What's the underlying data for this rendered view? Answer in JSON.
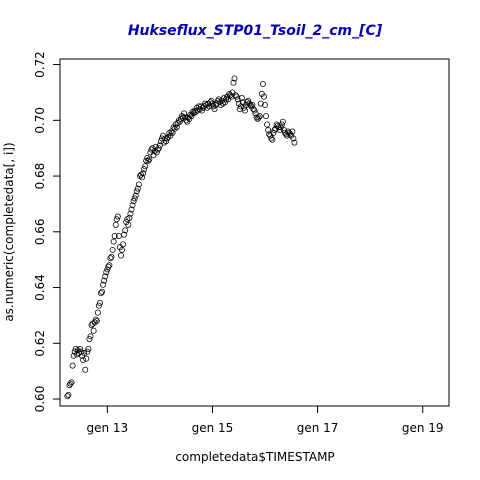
{
  "chart_data": {
    "type": "scatter",
    "title": "Hukseflux_STP01_Tsoil_2_cm_[C]",
    "title_color": "#0000cc",
    "xlabel": "completedata$TIMESTAMP",
    "ylabel": "as.numeric(completedata[, i])",
    "x_unit": "days (day 13 = gen 13)",
    "xlim": [
      12.1,
      19.5
    ],
    "ylim": [
      0.5975,
      0.722
    ],
    "x_ticks": [
      {
        "value": 13,
        "label": "gen 13"
      },
      {
        "value": 15,
        "label": "gen 15"
      },
      {
        "value": 17,
        "label": "gen 17"
      },
      {
        "value": 19,
        "label": "gen 19"
      }
    ],
    "y_ticks": [
      {
        "value": 0.6,
        "label": "0.60"
      },
      {
        "value": 0.62,
        "label": "0.62"
      },
      {
        "value": 0.64,
        "label": "0.64"
      },
      {
        "value": 0.66,
        "label": "0.66"
      },
      {
        "value": 0.68,
        "label": "0.68"
      },
      {
        "value": 0.7,
        "label": "0.70"
      },
      {
        "value": 0.72,
        "label": "0.72"
      }
    ],
    "point_style": "open-circle",
    "grid": false,
    "points": [
      [
        12.24,
        0.601
      ],
      [
        12.26,
        0.6015
      ],
      [
        12.28,
        0.605
      ],
      [
        12.3,
        0.6055
      ],
      [
        12.32,
        0.606
      ],
      [
        12.34,
        0.612
      ],
      [
        12.36,
        0.6155
      ],
      [
        12.38,
        0.617
      ],
      [
        12.4,
        0.618
      ],
      [
        12.42,
        0.616
      ],
      [
        12.44,
        0.6175
      ],
      [
        12.46,
        0.6165
      ],
      [
        12.48,
        0.618
      ],
      [
        12.5,
        0.617
      ],
      [
        12.52,
        0.6155
      ],
      [
        12.54,
        0.614
      ],
      [
        12.56,
        0.6165
      ],
      [
        12.58,
        0.6105
      ],
      [
        12.6,
        0.6145
      ],
      [
        12.62,
        0.617
      ],
      [
        12.64,
        0.618
      ],
      [
        12.66,
        0.6215
      ],
      [
        12.68,
        0.6225
      ],
      [
        12.7,
        0.6265
      ],
      [
        12.72,
        0.627
      ],
      [
        12.74,
        0.6245
      ],
      [
        12.76,
        0.6275
      ],
      [
        12.78,
        0.6285
      ],
      [
        12.8,
        0.628
      ],
      [
        12.82,
        0.631
      ],
      [
        12.84,
        0.6335
      ],
      [
        12.86,
        0.6345
      ],
      [
        12.88,
        0.638
      ],
      [
        12.9,
        0.6385
      ],
      [
        12.92,
        0.641
      ],
      [
        12.94,
        0.6425
      ],
      [
        12.96,
        0.644
      ],
      [
        12.98,
        0.6455
      ],
      [
        13.0,
        0.6465
      ],
      [
        13.02,
        0.6475
      ],
      [
        13.04,
        0.648
      ],
      [
        13.06,
        0.6505
      ],
      [
        13.08,
        0.651
      ],
      [
        13.1,
        0.6535
      ],
      [
        13.12,
        0.6565
      ],
      [
        13.14,
        0.6585
      ],
      [
        13.16,
        0.6625
      ],
      [
        13.18,
        0.6645
      ],
      [
        13.2,
        0.6655
      ],
      [
        13.22,
        0.6585
      ],
      [
        13.24,
        0.6545
      ],
      [
        13.26,
        0.6515
      ],
      [
        13.28,
        0.6535
      ],
      [
        13.3,
        0.6555
      ],
      [
        13.32,
        0.659
      ],
      [
        13.34,
        0.6605
      ],
      [
        13.36,
        0.6635
      ],
      [
        13.38,
        0.6645
      ],
      [
        13.4,
        0.6625
      ],
      [
        13.42,
        0.665
      ],
      [
        13.44,
        0.6665
      ],
      [
        13.46,
        0.668
      ],
      [
        13.48,
        0.6695
      ],
      [
        13.5,
        0.671
      ],
      [
        13.52,
        0.672
      ],
      [
        13.54,
        0.673
      ],
      [
        13.56,
        0.6745
      ],
      [
        13.58,
        0.6755
      ],
      [
        13.6,
        0.677
      ],
      [
        13.62,
        0.68
      ],
      [
        13.64,
        0.6805
      ],
      [
        13.66,
        0.6795
      ],
      [
        13.68,
        0.681
      ],
      [
        13.7,
        0.6825
      ],
      [
        13.72,
        0.6835
      ],
      [
        13.74,
        0.6855
      ],
      [
        13.76,
        0.6865
      ],
      [
        13.78,
        0.6855
      ],
      [
        13.8,
        0.686
      ],
      [
        13.82,
        0.6885
      ],
      [
        13.84,
        0.6895
      ],
      [
        13.86,
        0.69
      ],
      [
        13.88,
        0.6875
      ],
      [
        13.9,
        0.689
      ],
      [
        13.92,
        0.6905
      ],
      [
        13.94,
        0.6885
      ],
      [
        13.96,
        0.6895
      ],
      [
        13.98,
        0.69
      ],
      [
        14.0,
        0.691
      ],
      [
        14.02,
        0.6925
      ],
      [
        14.04,
        0.6935
      ],
      [
        14.06,
        0.6945
      ],
      [
        14.08,
        0.692
      ],
      [
        14.1,
        0.6935
      ],
      [
        14.12,
        0.6925
      ],
      [
        14.14,
        0.6935
      ],
      [
        14.16,
        0.694
      ],
      [
        14.18,
        0.6955
      ],
      [
        14.2,
        0.6945
      ],
      [
        14.22,
        0.696
      ],
      [
        14.24,
        0.6955
      ],
      [
        14.26,
        0.6975
      ],
      [
        14.28,
        0.697
      ],
      [
        14.3,
        0.6985
      ],
      [
        14.32,
        0.6975
      ],
      [
        14.34,
        0.699
      ],
      [
        14.36,
        0.7
      ],
      [
        14.38,
        0.6995
      ],
      [
        14.4,
        0.7005
      ],
      [
        14.42,
        0.7015
      ],
      [
        14.44,
        0.701
      ],
      [
        14.46,
        0.7025
      ],
      [
        14.48,
        0.701
      ],
      [
        14.5,
        0.7
      ],
      [
        14.52,
        0.6995
      ],
      [
        14.54,
        0.701
      ],
      [
        14.56,
        0.7005
      ],
      [
        14.58,
        0.702
      ],
      [
        14.6,
        0.7015
      ],
      [
        14.62,
        0.703
      ],
      [
        14.64,
        0.7025
      ],
      [
        14.66,
        0.7035
      ],
      [
        14.68,
        0.703
      ],
      [
        14.7,
        0.7045
      ],
      [
        14.72,
        0.7035
      ],
      [
        14.74,
        0.705
      ],
      [
        14.76,
        0.704
      ],
      [
        14.78,
        0.705
      ],
      [
        14.8,
        0.7035
      ],
      [
        14.82,
        0.7045
      ],
      [
        14.84,
        0.705
      ],
      [
        14.86,
        0.706
      ],
      [
        14.88,
        0.7055
      ],
      [
        14.9,
        0.7045
      ],
      [
        14.92,
        0.706
      ],
      [
        14.94,
        0.705
      ],
      [
        14.96,
        0.7065
      ],
      [
        14.98,
        0.707
      ],
      [
        15.0,
        0.706
      ],
      [
        15.02,
        0.705
      ],
      [
        15.04,
        0.704
      ],
      [
        15.06,
        0.7055
      ],
      [
        15.08,
        0.706
      ],
      [
        15.1,
        0.707
      ],
      [
        15.12,
        0.7075
      ],
      [
        15.14,
        0.7065
      ],
      [
        15.16,
        0.7055
      ],
      [
        15.18,
        0.707
      ],
      [
        15.2,
        0.706
      ],
      [
        15.22,
        0.708
      ],
      [
        15.24,
        0.7065
      ],
      [
        15.26,
        0.7075
      ],
      [
        15.28,
        0.7085
      ],
      [
        15.3,
        0.7075
      ],
      [
        15.32,
        0.7095
      ],
      [
        15.34,
        0.709
      ],
      [
        15.36,
        0.7085
      ],
      [
        15.38,
        0.71
      ],
      [
        15.4,
        0.7135
      ],
      [
        15.42,
        0.715
      ],
      [
        15.44,
        0.709
      ],
      [
        15.46,
        0.7085
      ],
      [
        15.48,
        0.7075
      ],
      [
        15.5,
        0.706
      ],
      [
        15.52,
        0.704
      ],
      [
        15.54,
        0.705
      ],
      [
        15.56,
        0.708
      ],
      [
        15.58,
        0.7065
      ],
      [
        15.6,
        0.7045
      ],
      [
        15.62,
        0.7035
      ],
      [
        15.64,
        0.7055
      ],
      [
        15.66,
        0.7065
      ],
      [
        15.68,
        0.707
      ],
      [
        15.7,
        0.706
      ],
      [
        15.72,
        0.7055
      ],
      [
        15.74,
        0.705
      ],
      [
        15.76,
        0.7055
      ],
      [
        15.78,
        0.704
      ],
      [
        15.8,
        0.7035
      ],
      [
        15.82,
        0.7025
      ],
      [
        15.84,
        0.701
      ],
      [
        15.86,
        0.7005
      ],
      [
        15.88,
        0.701
      ],
      [
        15.9,
        0.7015
      ],
      [
        15.92,
        0.706
      ],
      [
        15.94,
        0.7095
      ],
      [
        15.96,
        0.713
      ],
      [
        15.98,
        0.7085
      ],
      [
        16.0,
        0.7055
      ],
      [
        16.02,
        0.7015
      ],
      [
        16.04,
        0.6985
      ],
      [
        16.06,
        0.6965
      ],
      [
        16.08,
        0.695
      ],
      [
        16.1,
        0.6945
      ],
      [
        16.12,
        0.6935
      ],
      [
        16.14,
        0.693
      ],
      [
        16.16,
        0.6955
      ],
      [
        16.18,
        0.6965
      ],
      [
        16.2,
        0.697
      ],
      [
        16.22,
        0.6985
      ],
      [
        16.24,
        0.698
      ],
      [
        16.26,
        0.6975
      ],
      [
        16.28,
        0.6965
      ],
      [
        16.3,
        0.6975
      ],
      [
        16.32,
        0.6985
      ],
      [
        16.34,
        0.6995
      ],
      [
        16.36,
        0.6965
      ],
      [
        16.38,
        0.6955
      ],
      [
        16.4,
        0.695
      ],
      [
        16.42,
        0.6945
      ],
      [
        16.44,
        0.696
      ],
      [
        16.46,
        0.6955
      ],
      [
        16.48,
        0.695
      ],
      [
        16.5,
        0.6945
      ],
      [
        16.52,
        0.696
      ],
      [
        16.54,
        0.6935
      ],
      [
        16.56,
        0.692
      ]
    ]
  }
}
